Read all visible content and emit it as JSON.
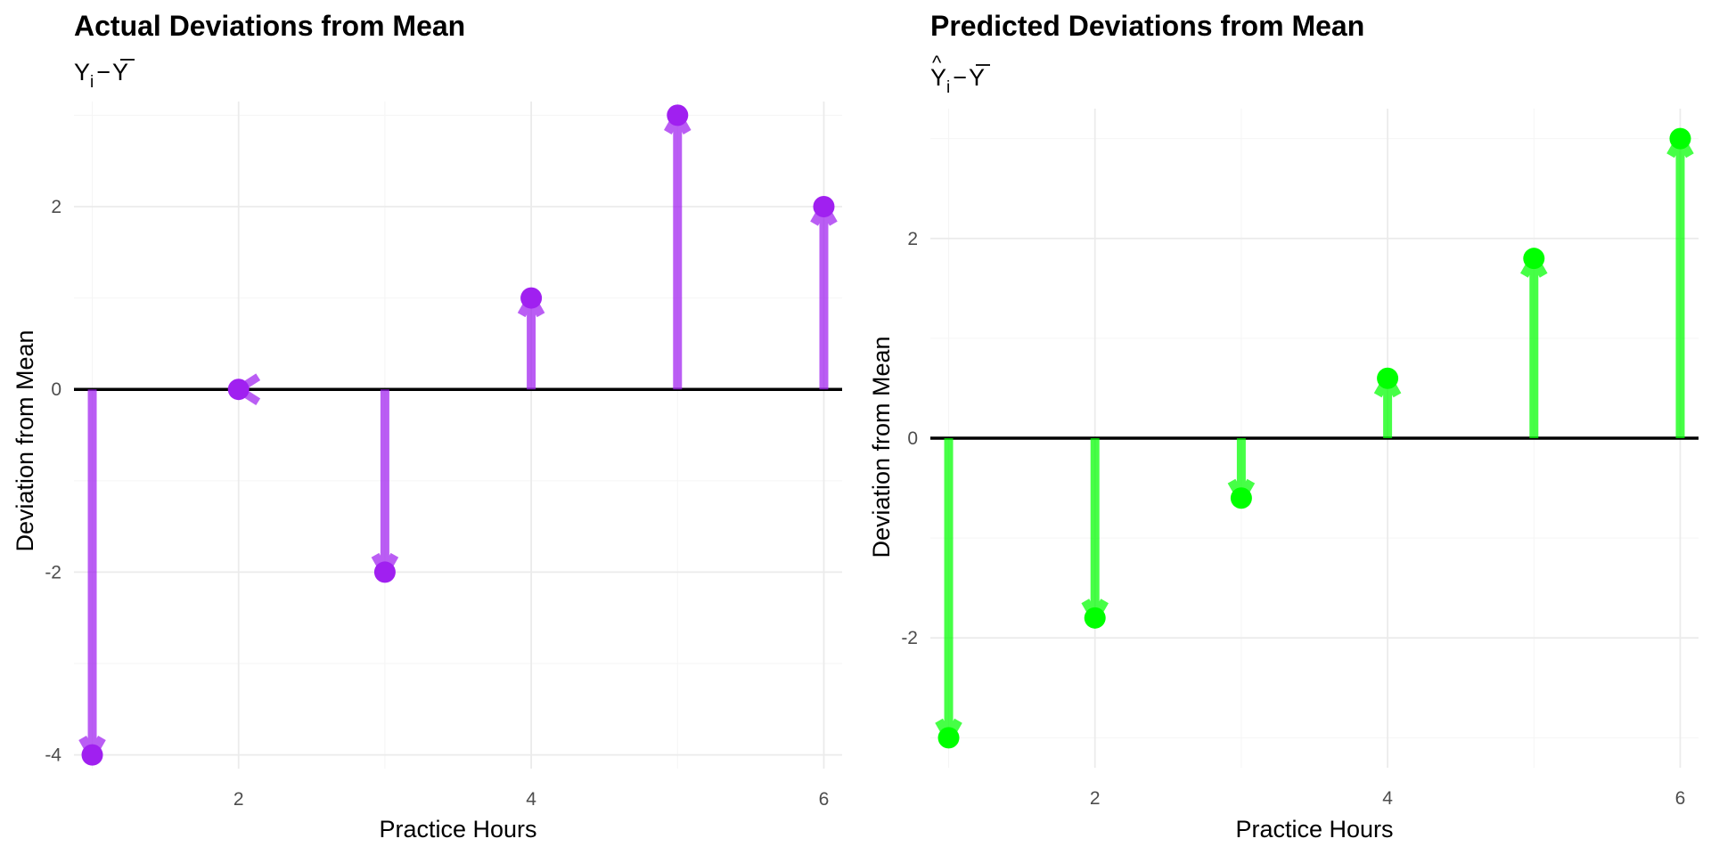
{
  "chart_data": [
    {
      "type": "lollipop-arrow",
      "title": "Actual Deviations from Mean",
      "subtitle": {
        "base": "Y",
        "subscript": "i",
        "operator": "−",
        "bar": "Y"
      },
      "xlabel": "Practice Hours",
      "ylabel": "Deviation from Mean",
      "xlim": [
        0.875,
        6.125
      ],
      "ylim": [
        -4.15,
        3.15
      ],
      "x_ticks": [
        2,
        4,
        6
      ],
      "y_ticks": [
        -4,
        -2,
        0,
        2
      ],
      "x": [
        1,
        2,
        3,
        4,
        5,
        6
      ],
      "y": [
        -4,
        0,
        -2,
        1,
        3,
        2
      ],
      "color": "#a020f0",
      "reference_line": 0,
      "grid": true
    },
    {
      "type": "lollipop-arrow",
      "title": "Predicted Deviations from Mean",
      "subtitle": {
        "base": "Y",
        "hat": "^",
        "subscript": "i",
        "operator": "−",
        "bar": "Y"
      },
      "xlabel": "Practice Hours",
      "ylabel": "Deviation from Mean",
      "xlim": [
        0.875,
        6.125
      ],
      "ylim": [
        -3.3,
        3.3
      ],
      "x_ticks": [
        2,
        4,
        6
      ],
      "y_ticks": [
        -2,
        0,
        2
      ],
      "x": [
        1,
        2,
        3,
        4,
        5,
        6
      ],
      "y": [
        -3.0,
        -1.8,
        -0.6,
        0.6,
        1.8,
        3.0
      ],
      "color": "#00ff00",
      "reference_line": 0,
      "grid": true
    }
  ]
}
